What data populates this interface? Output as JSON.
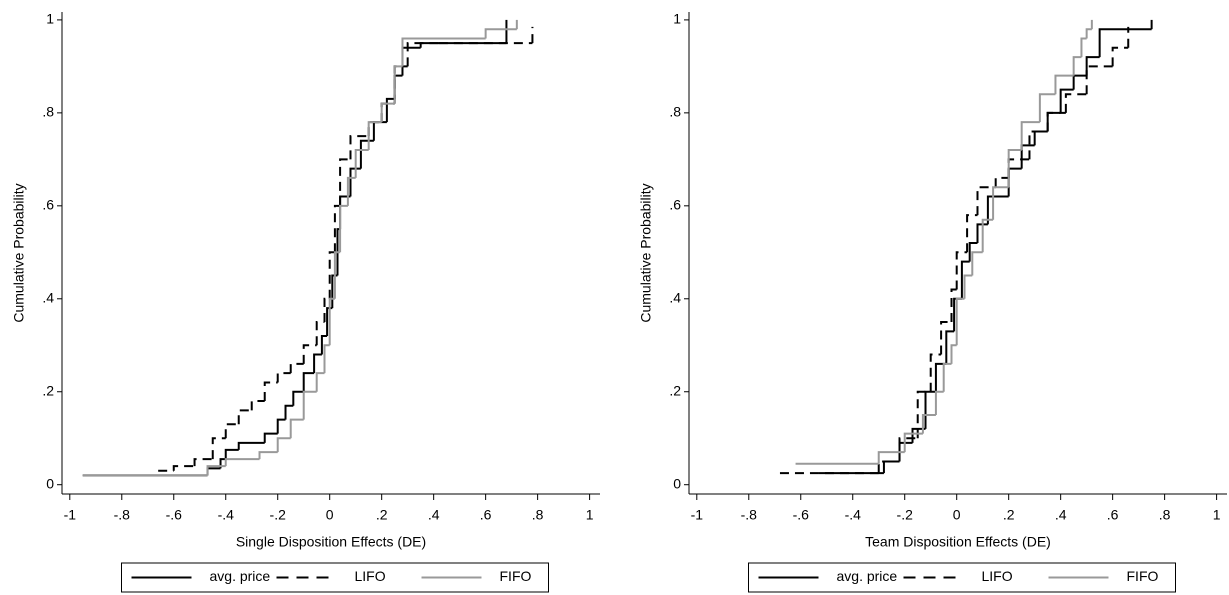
{
  "chart_data": [
    {
      "type": "line",
      "step": "post",
      "xlabel": "Single Disposition Effects (DE)",
      "ylabel": "Cumulative Probability",
      "xlim": [
        -1.03,
        1.04
      ],
      "ylim": [
        -0.02,
        1.017
      ],
      "xticks": [
        -1,
        {
          "value": -0.8,
          "label": "-.8"
        },
        {
          "value": -0.6,
          "label": "-.6"
        },
        {
          "value": -0.4,
          "label": "-.4"
        },
        {
          "value": -0.2,
          "label": "-.2"
        },
        0,
        {
          "value": 0.2,
          "label": ".2"
        },
        {
          "value": 0.4,
          "label": ".4"
        },
        {
          "value": 0.6,
          "label": ".6"
        },
        {
          "value": 0.8,
          "label": ".8"
        },
        1
      ],
      "yticks": [
        0,
        {
          "value": 0.2,
          "label": ".2"
        },
        {
          "value": 0.4,
          "label": ".4"
        },
        {
          "value": 0.6,
          "label": ".6"
        },
        {
          "value": 0.8,
          "label": ".8"
        },
        1
      ],
      "series": [
        {
          "name": "avg. price",
          "color": "#000000",
          "style": "solid",
          "x": [
            -0.95,
            -0.47,
            -0.42,
            -0.4,
            -0.35,
            -0.25,
            -0.2,
            -0.17,
            -0.14,
            -0.1,
            -0.06,
            -0.03,
            -0.01,
            0.01,
            0.03,
            0.04,
            0.08,
            0.12,
            0.17,
            0.22,
            0.25,
            0.28,
            0.35,
            0.68
          ],
          "values": [
            0.02,
            0.035,
            0.055,
            0.075,
            0.09,
            0.11,
            0.14,
            0.17,
            0.2,
            0.24,
            0.28,
            0.32,
            0.38,
            0.45,
            0.55,
            0.62,
            0.68,
            0.74,
            0.78,
            0.83,
            0.88,
            0.94,
            0.95,
            1.0
          ]
        },
        {
          "name": "LIFO",
          "color": "#000000",
          "style": "dashed",
          "x": [
            -0.66,
            -0.6,
            -0.52,
            -0.45,
            -0.4,
            -0.35,
            -0.3,
            -0.25,
            -0.2,
            -0.15,
            -0.1,
            -0.05,
            -0.02,
            0.0,
            0.02,
            0.04,
            0.08,
            0.15,
            0.2,
            0.25,
            0.3,
            0.42,
            0.78
          ],
          "values": [
            0.03,
            0.04,
            0.055,
            0.1,
            0.13,
            0.16,
            0.18,
            0.22,
            0.24,
            0.26,
            0.3,
            0.35,
            0.4,
            0.5,
            0.6,
            0.7,
            0.75,
            0.78,
            0.82,
            0.9,
            0.95,
            0.95,
            0.985
          ]
        },
        {
          "name": "FIFO",
          "color": "#999999",
          "style": "solid",
          "x": [
            -0.95,
            -0.47,
            -0.4,
            -0.27,
            -0.2,
            -0.15,
            -0.1,
            -0.05,
            -0.02,
            0.0,
            0.02,
            0.04,
            0.07,
            0.1,
            0.15,
            0.2,
            0.25,
            0.28,
            0.6,
            0.72
          ],
          "values": [
            0.02,
            0.04,
            0.055,
            0.07,
            0.1,
            0.14,
            0.2,
            0.24,
            0.3,
            0.4,
            0.5,
            0.6,
            0.66,
            0.72,
            0.78,
            0.82,
            0.9,
            0.96,
            0.98,
            1.0
          ]
        }
      ]
    },
    {
      "type": "line",
      "step": "post",
      "xlabel": "Team Disposition Effects (DE)",
      "ylabel": "Cumulative Probability",
      "xlim": [
        -1.03,
        1.04
      ],
      "ylim": [
        -0.02,
        1.017
      ],
      "xticks": [
        -1,
        {
          "value": -0.8,
          "label": "-.8"
        },
        {
          "value": -0.6,
          "label": "-.6"
        },
        {
          "value": -0.4,
          "label": "-.4"
        },
        {
          "value": -0.2,
          "label": "-.2"
        },
        0,
        {
          "value": 0.2,
          "label": ".2"
        },
        {
          "value": 0.4,
          "label": ".4"
        },
        {
          "value": 0.6,
          "label": ".6"
        },
        {
          "value": 0.8,
          "label": ".8"
        },
        1
      ],
      "yticks": [
        0,
        {
          "value": 0.2,
          "label": ".2"
        },
        {
          "value": 0.4,
          "label": ".4"
        },
        {
          "value": 0.6,
          "label": ".6"
        },
        {
          "value": 0.8,
          "label": ".8"
        },
        1
      ],
      "series": [
        {
          "name": "avg. price",
          "color": "#000000",
          "style": "solid",
          "x": [
            -0.53,
            -0.28,
            -0.22,
            -0.17,
            -0.12,
            -0.08,
            -0.04,
            -0.01,
            0.02,
            0.05,
            0.08,
            0.12,
            0.2,
            0.25,
            0.3,
            0.35,
            0.4,
            0.45,
            0.5,
            0.55,
            0.75
          ],
          "values": [
            0.025,
            0.05,
            0.09,
            0.12,
            0.2,
            0.26,
            0.33,
            0.4,
            0.48,
            0.52,
            0.56,
            0.62,
            0.68,
            0.73,
            0.76,
            0.8,
            0.85,
            0.88,
            0.92,
            0.98,
            1.0
          ]
        },
        {
          "name": "LIFO",
          "color": "#000000",
          "style": "dashed",
          "x": [
            -0.68,
            -0.3,
            -0.22,
            -0.15,
            -0.1,
            -0.06,
            -0.02,
            0.0,
            0.04,
            0.08,
            0.15,
            0.2,
            0.28,
            0.35,
            0.42,
            0.5,
            0.6,
            0.66
          ],
          "values": [
            0.025,
            0.05,
            0.1,
            0.2,
            0.28,
            0.35,
            0.42,
            0.5,
            0.58,
            0.64,
            0.66,
            0.7,
            0.76,
            0.8,
            0.84,
            0.9,
            0.94,
            0.985
          ]
        },
        {
          "name": "FIFO",
          "color": "#999999",
          "style": "solid",
          "x": [
            -0.62,
            -0.3,
            -0.2,
            -0.13,
            -0.08,
            -0.05,
            -0.02,
            0.0,
            0.03,
            0.06,
            0.1,
            0.14,
            0.2,
            0.25,
            0.32,
            0.38,
            0.45,
            0.48,
            0.5,
            0.52
          ],
          "values": [
            0.045,
            0.07,
            0.11,
            0.15,
            0.2,
            0.26,
            0.3,
            0.4,
            0.45,
            0.5,
            0.57,
            0.64,
            0.72,
            0.78,
            0.84,
            0.88,
            0.92,
            0.96,
            0.98,
            1.0
          ]
        }
      ]
    }
  ]
}
